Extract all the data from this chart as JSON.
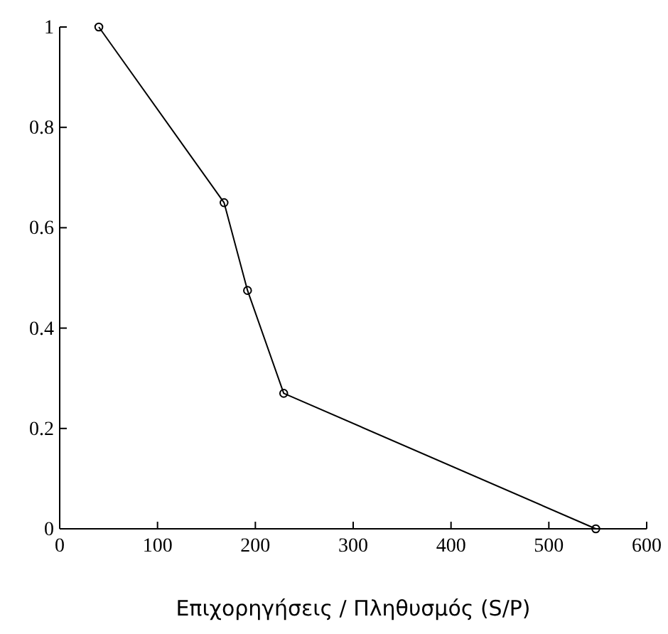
{
  "chart_data": {
    "type": "line",
    "xlabel": "Επιχορηγήσεις / Πληθυσμός (S/P)",
    "x": [
      40,
      168,
      192,
      229,
      548
    ],
    "values": [
      1,
      0.65,
      0.475,
      0.27,
      0
    ],
    "color": "#000000",
    "marker": "circle",
    "xlim": [
      0,
      600
    ],
    "xticks": [
      0,
      100,
      200,
      300,
      400,
      500,
      600
    ],
    "ylim": [
      0,
      1
    ],
    "yticks": [
      0,
      0.2,
      0.4,
      0.6,
      0.8,
      1
    ],
    "grid": false
  }
}
